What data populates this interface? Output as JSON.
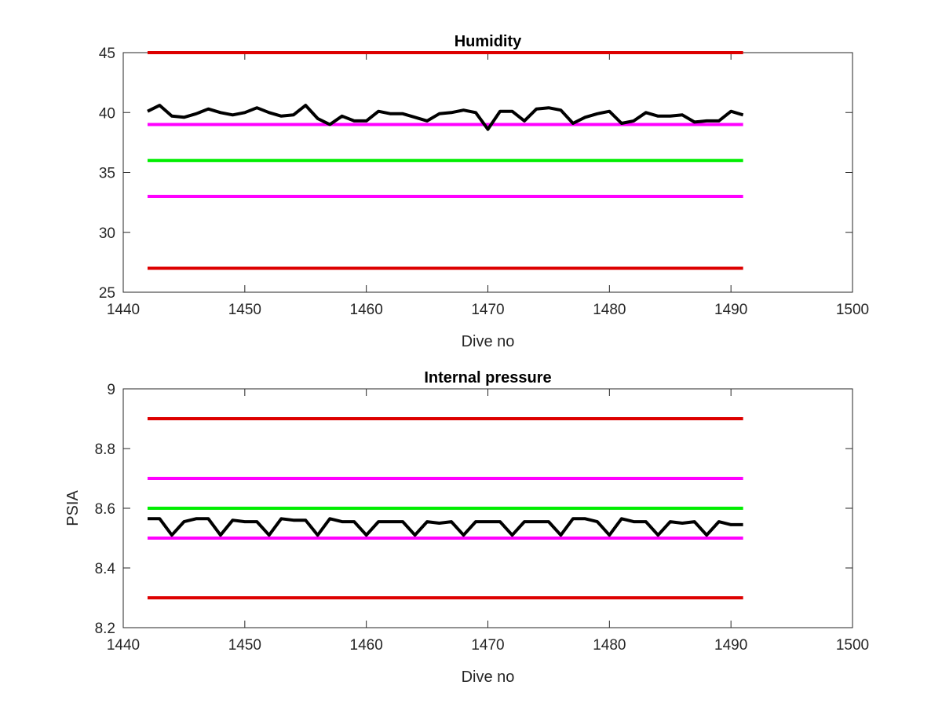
{
  "chart_data": [
    {
      "type": "line",
      "title": "Humidity",
      "xlabel": "Dive no",
      "ylabel": "",
      "xlim": [
        1440,
        1500
      ],
      "ylim": [
        25,
        45
      ],
      "xticks": [
        1440,
        1450,
        1460,
        1470,
        1480,
        1490,
        1500
      ],
      "yticks": [
        25,
        30,
        35,
        40,
        45
      ],
      "grid": false,
      "reference_lines": [
        {
          "color": "#dd0000",
          "y": 45,
          "x": [
            1442,
            1491
          ]
        },
        {
          "color": "#ff00ff",
          "y": 39,
          "x": [
            1442,
            1491
          ]
        },
        {
          "color": "#00ee00",
          "y": 36,
          "x": [
            1442,
            1491
          ]
        },
        {
          "color": "#ff00ff",
          "y": 33,
          "x": [
            1442,
            1491
          ]
        },
        {
          "color": "#dd0000",
          "y": 27,
          "x": [
            1442,
            1491
          ]
        }
      ],
      "series": [
        {
          "color": "#000000",
          "x": [
            1442,
            1443,
            1444,
            1445,
            1446,
            1447,
            1448,
            1449,
            1450,
            1451,
            1452,
            1453,
            1454,
            1455,
            1456,
            1457,
            1458,
            1459,
            1460,
            1461,
            1462,
            1463,
            1464,
            1465,
            1466,
            1467,
            1468,
            1469,
            1470,
            1471,
            1472,
            1473,
            1474,
            1475,
            1476,
            1477,
            1478,
            1479,
            1480,
            1481,
            1482,
            1483,
            1484,
            1485,
            1486,
            1487,
            1488,
            1489,
            1490,
            1491
          ],
          "values": [
            40.1,
            40.6,
            39.7,
            39.6,
            39.9,
            40.3,
            40.0,
            39.8,
            40.0,
            40.4,
            40.0,
            39.7,
            39.8,
            40.6,
            39.5,
            39.0,
            39.7,
            39.3,
            39.3,
            40.1,
            39.9,
            39.9,
            39.6,
            39.3,
            39.9,
            40.0,
            40.2,
            40.0,
            38.6,
            40.1,
            40.1,
            39.3,
            40.3,
            40.4,
            40.2,
            39.1,
            39.6,
            39.9,
            40.1,
            39.1,
            39.3,
            40.0,
            39.7,
            39.7,
            39.8,
            39.2,
            39.3,
            39.3,
            40.1,
            39.8
          ]
        }
      ]
    },
    {
      "type": "line",
      "title": "Internal pressure",
      "xlabel": "Dive no",
      "ylabel": "PSIA",
      "xlim": [
        1440,
        1500
      ],
      "ylim": [
        8.2,
        9.0
      ],
      "xticks": [
        1440,
        1450,
        1460,
        1470,
        1480,
        1490,
        1500
      ],
      "yticks": [
        8.2,
        8.4,
        8.6,
        8.8,
        9
      ],
      "ytick_labels": [
        "8.2",
        "8.4",
        "8.6",
        "8.8",
        "9"
      ],
      "grid": false,
      "reference_lines": [
        {
          "color": "#dd0000",
          "y": 8.9,
          "x": [
            1442,
            1491
          ]
        },
        {
          "color": "#ff00ff",
          "y": 8.7,
          "x": [
            1442,
            1491
          ]
        },
        {
          "color": "#00ee00",
          "y": 8.6,
          "x": [
            1442,
            1491
          ]
        },
        {
          "color": "#ff00ff",
          "y": 8.5,
          "x": [
            1442,
            1491
          ]
        },
        {
          "color": "#dd0000",
          "y": 8.3,
          "x": [
            1442,
            1491
          ]
        }
      ],
      "series": [
        {
          "color": "#000000",
          "x": [
            1442,
            1443,
            1444,
            1445,
            1446,
            1447,
            1448,
            1449,
            1450,
            1451,
            1452,
            1453,
            1454,
            1455,
            1456,
            1457,
            1458,
            1459,
            1460,
            1461,
            1462,
            1463,
            1464,
            1465,
            1466,
            1467,
            1468,
            1469,
            1470,
            1471,
            1472,
            1473,
            1474,
            1475,
            1476,
            1477,
            1478,
            1479,
            1480,
            1481,
            1482,
            1483,
            1484,
            1485,
            1486,
            1487,
            1488,
            1489,
            1490,
            1491
          ],
          "values": [
            8.565,
            8.565,
            8.51,
            8.555,
            8.565,
            8.565,
            8.51,
            8.56,
            8.555,
            8.555,
            8.51,
            8.565,
            8.56,
            8.56,
            8.51,
            8.565,
            8.555,
            8.555,
            8.51,
            8.555,
            8.555,
            8.555,
            8.51,
            8.555,
            8.55,
            8.555,
            8.51,
            8.555,
            8.555,
            8.555,
            8.51,
            8.555,
            8.555,
            8.555,
            8.51,
            8.565,
            8.565,
            8.555,
            8.51,
            8.565,
            8.555,
            8.555,
            8.51,
            8.555,
            8.55,
            8.555,
            8.51,
            8.555,
            8.545,
            8.545
          ]
        }
      ]
    }
  ]
}
